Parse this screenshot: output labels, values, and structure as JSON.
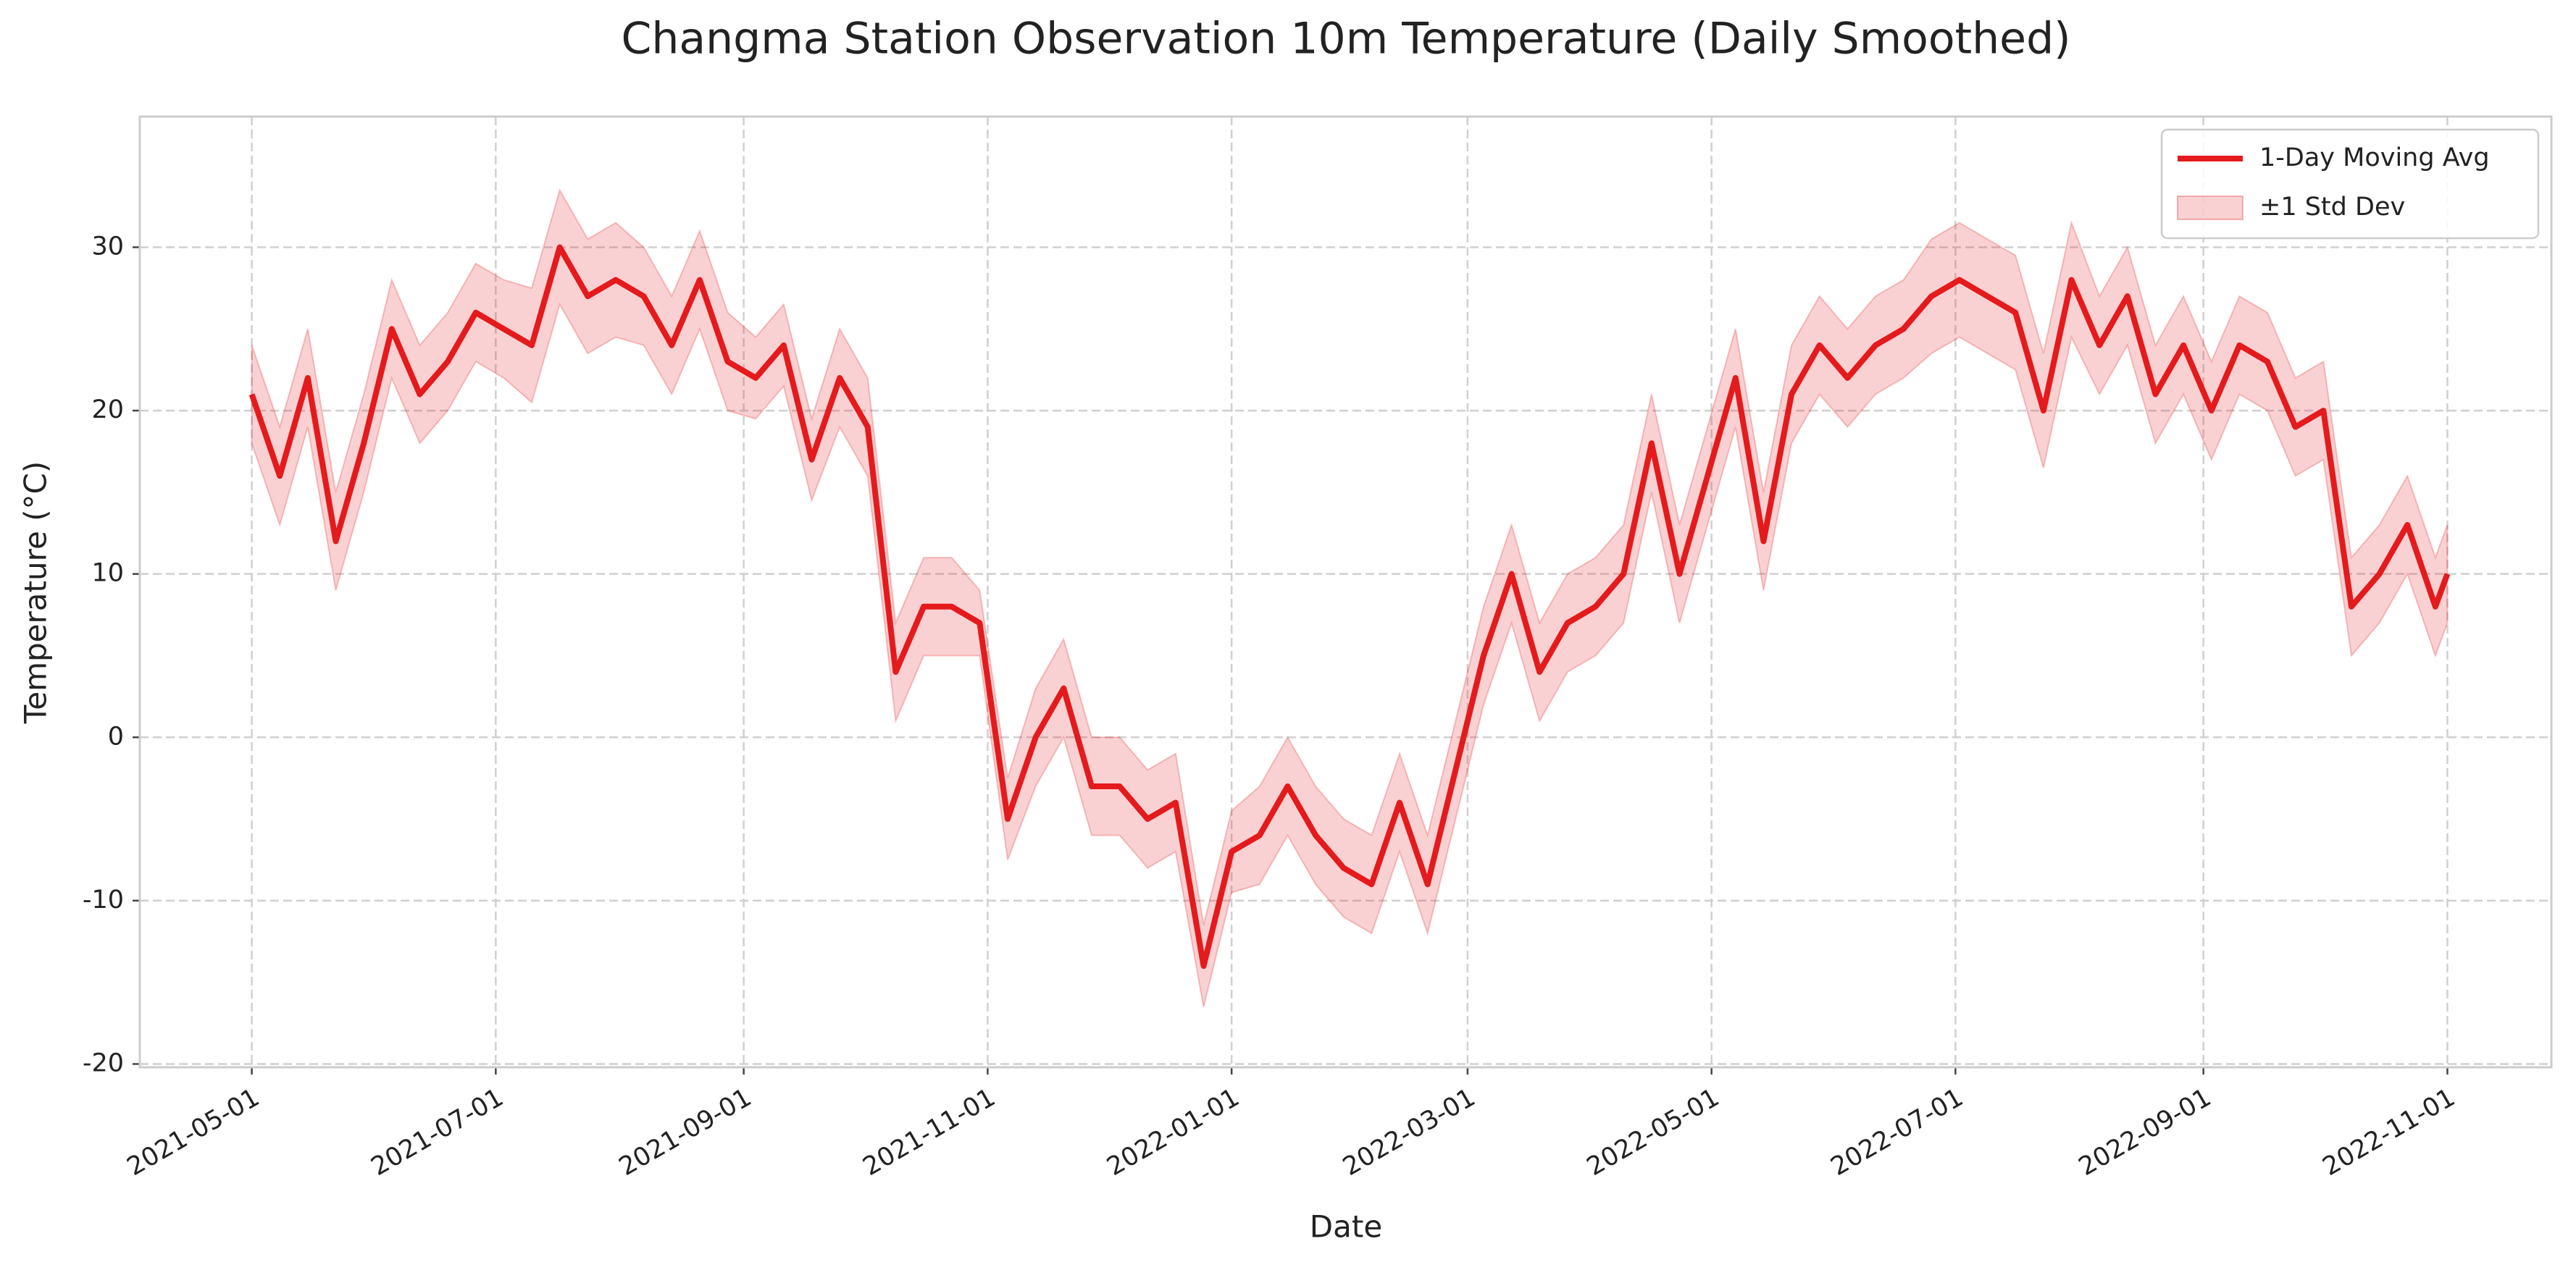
{
  "chart_data": {
    "type": "line",
    "title": "Changma Station Observation 10m Temperature (Daily Smoothed)",
    "xlabel": "Date",
    "ylabel": "Temperature (°C)",
    "x": [
      "2021-05-01",
      "2021-05-08",
      "2021-05-15",
      "2021-05-22",
      "2021-05-29",
      "2021-06-05",
      "2021-06-12",
      "2021-06-19",
      "2021-06-26",
      "2021-07-03",
      "2021-07-10",
      "2021-07-17",
      "2021-07-24",
      "2021-07-31",
      "2021-08-07",
      "2021-08-14",
      "2021-08-21",
      "2021-08-28",
      "2021-09-04",
      "2021-09-11",
      "2021-09-18",
      "2021-09-25",
      "2021-10-02",
      "2021-10-09",
      "2021-10-16",
      "2021-10-23",
      "2021-10-30",
      "2021-11-06",
      "2021-11-13",
      "2021-11-20",
      "2021-11-27",
      "2021-12-04",
      "2021-12-11",
      "2021-12-18",
      "2021-12-25",
      "2022-01-01",
      "2022-01-08",
      "2022-01-15",
      "2022-01-22",
      "2022-01-29",
      "2022-02-05",
      "2022-02-12",
      "2022-02-19",
      "2022-02-26",
      "2022-03-05",
      "2022-03-12",
      "2022-03-19",
      "2022-03-26",
      "2022-04-02",
      "2022-04-09",
      "2022-04-16",
      "2022-04-23",
      "2022-04-30",
      "2022-05-07",
      "2022-05-14",
      "2022-05-21",
      "2022-05-28",
      "2022-06-04",
      "2022-06-11",
      "2022-06-18",
      "2022-06-25",
      "2022-07-02",
      "2022-07-09",
      "2022-07-16",
      "2022-07-23",
      "2022-07-30",
      "2022-08-06",
      "2022-08-13",
      "2022-08-20",
      "2022-08-27",
      "2022-09-03",
      "2022-09-10",
      "2022-09-17",
      "2022-09-24",
      "2022-10-01",
      "2022-10-08",
      "2022-10-15",
      "2022-10-22",
      "2022-10-29",
      "2022-11-01"
    ],
    "series": [
      {
        "name": "1-Day Moving Avg",
        "color": "#e41a1c",
        "values": [
          21,
          16,
          22,
          12,
          18,
          25,
          21,
          23,
          26,
          25,
          24,
          30,
          27,
          28,
          27,
          24,
          28,
          23,
          22,
          24,
          17,
          22,
          19,
          4,
          8,
          8,
          7,
          -5,
          0,
          3,
          -3,
          -3,
          -5,
          -4,
          -14,
          -7,
          -6,
          -3,
          -6,
          -8,
          -9,
          -4,
          -9,
          -2,
          5,
          10,
          4,
          7,
          8,
          10,
          18,
          10,
          16,
          22,
          12,
          21,
          24,
          22,
          24,
          25,
          27,
          28,
          27,
          26,
          20,
          28,
          24,
          27,
          21,
          24,
          20,
          24,
          23,
          19,
          20,
          8,
          10,
          13,
          8,
          10
        ]
      },
      {
        "name": "±1 Std Dev",
        "color": "#e41a1c",
        "values": [
          3,
          3,
          3,
          3,
          3,
          3,
          3,
          3,
          3,
          3,
          3.5,
          3.5,
          3.5,
          3.5,
          3,
          3,
          3,
          3,
          2.5,
          2.5,
          2.5,
          3,
          3,
          3,
          3,
          3,
          2,
          2.5,
          3,
          3,
          3,
          3,
          3,
          3,
          2.5,
          2.5,
          3,
          3,
          3,
          3,
          3,
          3,
          3,
          3,
          3,
          3,
          3,
          3,
          3,
          3,
          3,
          3,
          3,
          3,
          3,
          3,
          3,
          3,
          3,
          3,
          3.5,
          3.5,
          3.5,
          3.5,
          3.5,
          3.5,
          3,
          3,
          3,
          3,
          3,
          3,
          3,
          3,
          3,
          3,
          3,
          3,
          3,
          3
        ]
      }
    ],
    "xlim": [
      "2021-04-03",
      "2022-11-27"
    ],
    "xticks": [
      "2021-05-01",
      "2021-07-01",
      "2021-09-01",
      "2021-11-01",
      "2022-01-01",
      "2022-03-01",
      "2022-05-01",
      "2022-07-01",
      "2022-09-01",
      "2022-11-01"
    ],
    "ylim": [
      -20.2,
      38
    ],
    "yticks": [
      -20,
      -10,
      0,
      10,
      20,
      30
    ],
    "grid": true,
    "legend": "upper right"
  }
}
